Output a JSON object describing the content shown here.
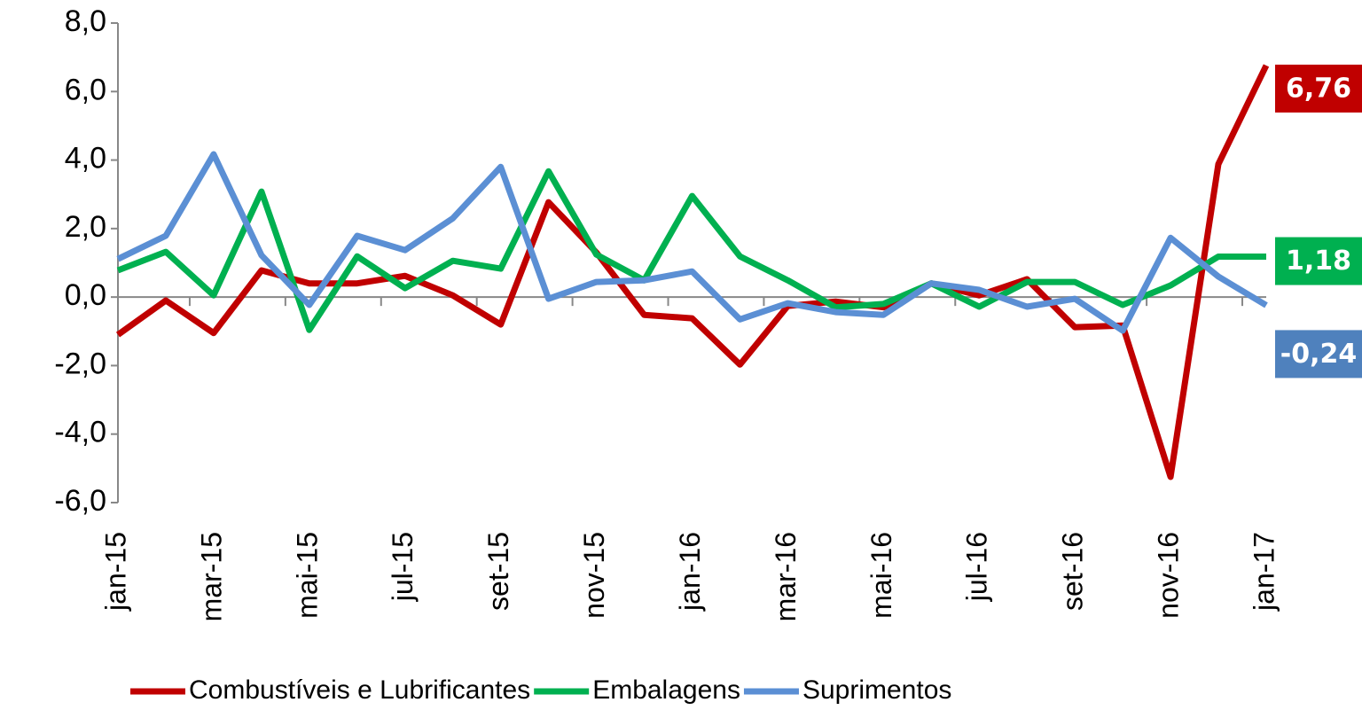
{
  "chart_data": {
    "type": "line",
    "categories": [
      "jan-15",
      null,
      "mar-15",
      null,
      "mai-15",
      null,
      "jul-15",
      null,
      "set-15",
      null,
      "nov-15",
      null,
      "jan-16",
      null,
      "mar-16",
      null,
      "mai-16",
      null,
      "jul-16",
      null,
      "set-16",
      null,
      "nov-16",
      null,
      "jan-17"
    ],
    "ylim": [
      -6,
      8
    ],
    "yticks": [
      {
        "value": -6,
        "label": "-6,0"
      },
      {
        "value": -4,
        "label": "-4,0"
      },
      {
        "value": -2,
        "label": "-2,0"
      },
      {
        "value": 0,
        "label": "0,0"
      },
      {
        "value": 2,
        "label": "2,0"
      },
      {
        "value": 4,
        "label": "4,0"
      },
      {
        "value": 6,
        "label": "6,0"
      },
      {
        "value": 8,
        "label": "8,0"
      }
    ],
    "legend": "bottom",
    "series": [
      {
        "name": "Combustíveis e Lubrificantes",
        "color": "#c00000",
        "values": [
          -1.1,
          -0.1,
          -1.05,
          0.78,
          0.4,
          0.4,
          0.62,
          0.05,
          -0.8,
          2.77,
          1.3,
          -0.52,
          -0.62,
          -1.97,
          -0.26,
          -0.13,
          -0.3,
          0.4,
          0.05,
          0.52,
          -0.88,
          -0.83,
          -5.25,
          3.88,
          6.76
        ],
        "value_labels": [
          null,
          null,
          null,
          null,
          null,
          null,
          null,
          null,
          null,
          null,
          null,
          null,
          null,
          null,
          null,
          null,
          null,
          null,
          null,
          null,
          null,
          null,
          null,
          null,
          "6,76"
        ]
      },
      {
        "name": "Embalagens",
        "color": "#00b050",
        "values": [
          0.78,
          1.32,
          0.05,
          3.08,
          -0.96,
          1.19,
          0.26,
          1.06,
          0.83,
          3.67,
          1.24,
          0.49,
          2.95,
          1.19,
          0.49,
          -0.3,
          -0.2,
          0.4,
          -0.28,
          0.44,
          0.44,
          -0.23,
          0.34,
          1.18,
          1.18
        ],
        "value_labels": [
          null,
          null,
          null,
          null,
          null,
          null,
          null,
          null,
          null,
          null,
          null,
          null,
          null,
          null,
          null,
          null,
          null,
          null,
          null,
          null,
          null,
          null,
          null,
          null,
          "1,18"
        ]
      },
      {
        "name": "Suprimentos",
        "color": "#5b8fd4",
        "values": [
          1.11,
          1.79,
          4.17,
          1.22,
          -0.23,
          1.79,
          1.37,
          2.3,
          3.8,
          -0.05,
          0.44,
          0.49,
          0.75,
          -0.65,
          -0.18,
          -0.44,
          -0.52,
          0.4,
          0.21,
          -0.28,
          -0.05,
          -0.98,
          1.73,
          0.6,
          -0.24
        ],
        "value_labels": [
          null,
          null,
          null,
          null,
          null,
          null,
          null,
          null,
          null,
          null,
          null,
          null,
          null,
          null,
          null,
          null,
          null,
          null,
          null,
          null,
          null,
          null,
          null,
          null,
          "-0,24"
        ]
      }
    ]
  }
}
